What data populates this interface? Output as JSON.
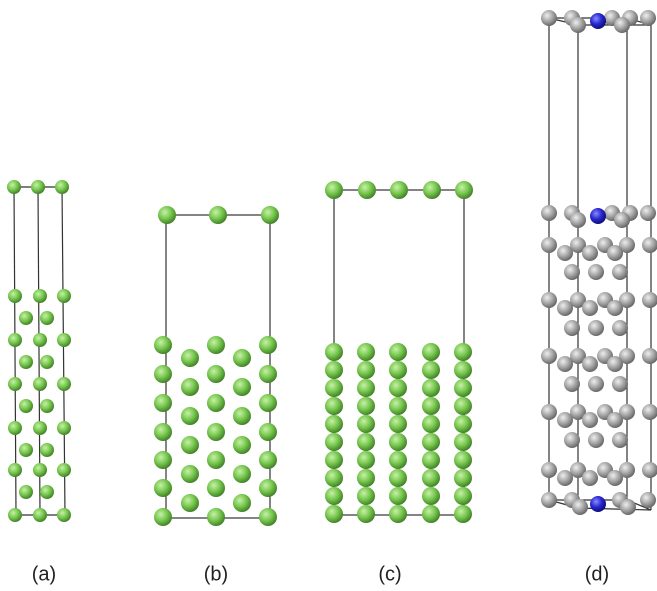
{
  "labels": [
    "(a)",
    "(b)",
    "(c)",
    "(d)"
  ]
}
